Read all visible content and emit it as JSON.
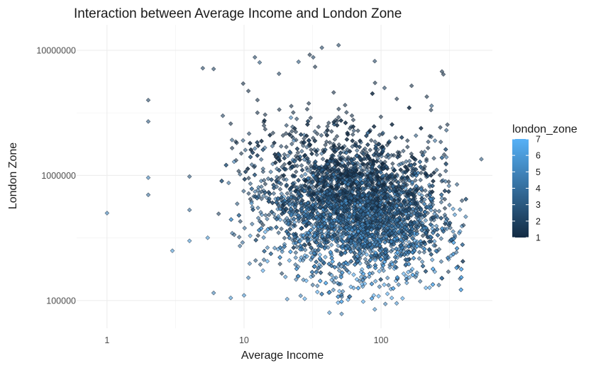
{
  "chart_data": {
    "type": "scatter",
    "title": "Interaction between Average Income and London Zone",
    "xlabel": "Average Income",
    "ylabel": "London Zone",
    "x_scale": "log10",
    "y_scale": "log10",
    "xlim": [
      0.6,
      650
    ],
    "ylim": [
      60000,
      16000000
    ],
    "x_ticks": [
      {
        "value": 1,
        "label": "1"
      },
      {
        "value": 10,
        "label": "10"
      },
      {
        "value": 100,
        "label": "100"
      }
    ],
    "y_ticks": [
      {
        "value": 100000,
        "label": "100000"
      },
      {
        "value": 1000000,
        "label": "1000000"
      },
      {
        "value": 10000000,
        "label": "10000000"
      }
    ],
    "grid": true,
    "legend": {
      "title": "london_zone",
      "placement": "right",
      "type": "colorbar",
      "min": 1,
      "max": 7,
      "labels": [
        "1",
        "2",
        "3",
        "4",
        "5",
        "6",
        "7"
      ],
      "color_low": "#132b43",
      "color_high": "#56b1f7"
    },
    "point_style": {
      "shape": "diamond",
      "opacity": 0.6,
      "stroke": "#1a2a3a"
    },
    "points": [
      {
        "x": 1,
        "y": 500000,
        "zone": 5
      },
      {
        "x": 2,
        "y": 4000000,
        "zone": 2
      },
      {
        "x": 2,
        "y": 2700000,
        "zone": 3
      },
      {
        "x": 2,
        "y": 960000,
        "zone": 5
      },
      {
        "x": 2,
        "y": 700000,
        "zone": 4
      },
      {
        "x": 3,
        "y": 250000,
        "zone": 6
      },
      {
        "x": 4,
        "y": 980000,
        "zone": 3
      },
      {
        "x": 4,
        "y": 530000,
        "zone": 4
      },
      {
        "x": 4,
        "y": 300000,
        "zone": 6
      },
      {
        "x": 5,
        "y": 7200000,
        "zone": 2
      },
      {
        "x": 6,
        "y": 7100000,
        "zone": 2
      },
      {
        "x": 6,
        "y": 115000,
        "zone": 5
      },
      {
        "x": 8,
        "y": 105000,
        "zone": 6
      },
      {
        "x": 10,
        "y": 110000,
        "zone": 6
      },
      {
        "x": 7,
        "y": 3000000,
        "zone": 2
      },
      {
        "x": 12,
        "y": 8800000,
        "zone": 2
      },
      {
        "x": 13,
        "y": 8000000,
        "zone": 3
      },
      {
        "x": 18,
        "y": 6500000,
        "zone": 2
      },
      {
        "x": 22,
        "y": 2900000,
        "zone": 5
      },
      {
        "x": 25,
        "y": 8100000,
        "zone": 3
      },
      {
        "x": 32,
        "y": 8800000,
        "zone": 2
      },
      {
        "x": 37,
        "y": 10500000,
        "zone": 2
      },
      {
        "x": 49,
        "y": 11000000,
        "zone": 2
      },
      {
        "x": 90,
        "y": 8200000,
        "zone": 2
      },
      {
        "x": 300,
        "y": 2300000,
        "zone": 3
      },
      {
        "x": 300,
        "y": 1400000,
        "zone": 4
      },
      {
        "x": 310,
        "y": 170000,
        "zone": 2
      },
      {
        "x": 400,
        "y": 400000,
        "zone": 2
      },
      {
        "x": 540,
        "y": 1350000,
        "zone": 3
      },
      {
        "x": 42,
        "y": 80000,
        "zone": 6
      },
      {
        "x": 90,
        "y": 85000,
        "zone": 6
      },
      {
        "x": 130,
        "y": 95000,
        "zone": 6
      }
    ]
  }
}
